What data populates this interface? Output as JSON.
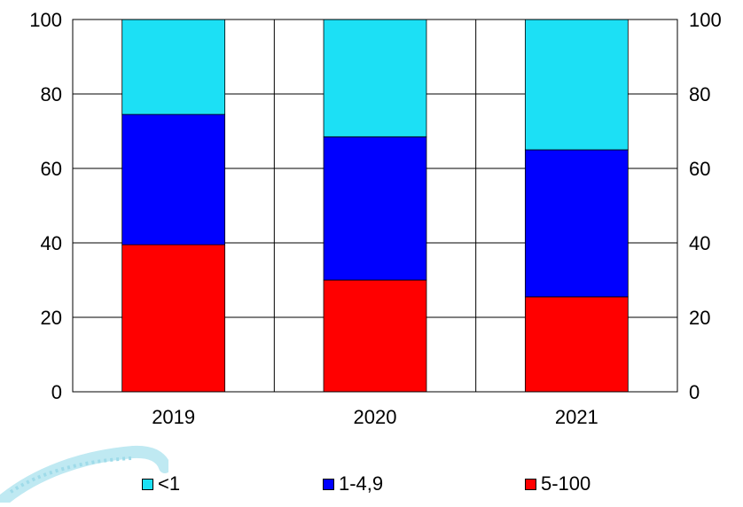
{
  "chart_data": {
    "type": "bar",
    "stacked": true,
    "title": "",
    "categories": [
      "2019",
      "2020",
      "2021"
    ],
    "series": [
      {
        "name": "5-100",
        "color": "#ff0000",
        "values": [
          39.5,
          30.0,
          25.5
        ]
      },
      {
        "name": "1-4,9",
        "color": "#0000ff",
        "values": [
          35.0,
          38.5,
          39.5
        ]
      },
      {
        "name": "<1",
        "color": "#1ce0f5",
        "values": [
          25.5,
          31.5,
          35.0
        ]
      }
    ],
    "legend_order": [
      "<1",
      "1-4,9",
      "5-100"
    ],
    "ylim": [
      0,
      100
    ],
    "yticks": [
      "0",
      "20",
      "40",
      "60",
      "80",
      "100"
    ],
    "secondary_y_axis": true,
    "grid": true,
    "legend_position": "bottom"
  }
}
